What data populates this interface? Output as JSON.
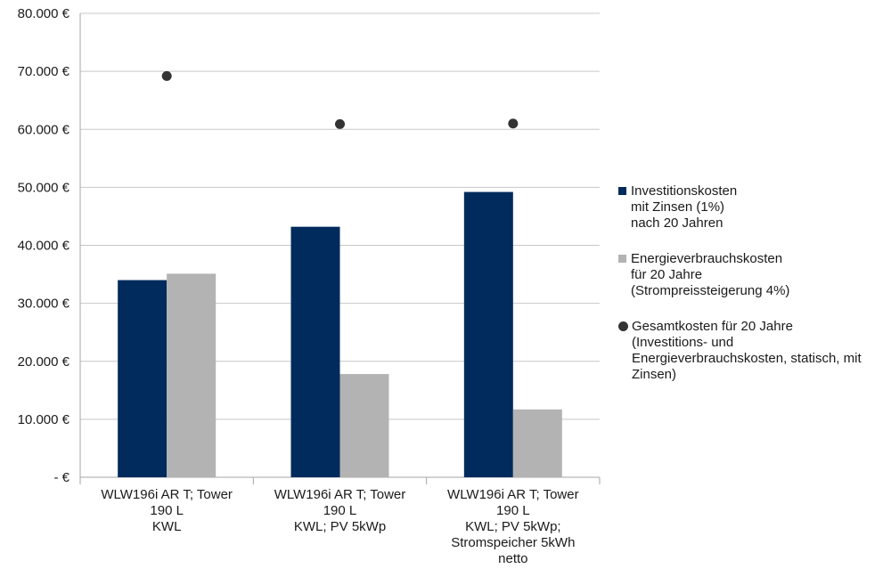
{
  "chart_data": {
    "type": "bar",
    "title": "",
    "xlabel": "",
    "ylabel": "",
    "ylim": [
      0,
      80000
    ],
    "y_ticks": [
      0,
      10000,
      20000,
      30000,
      40000,
      50000,
      60000,
      70000,
      80000
    ],
    "y_tick_labels": [
      "-   €",
      "10.000 €",
      "20.000 €",
      "30.000 €",
      "40.000 €",
      "50.000 €",
      "60.000 €",
      "70.000 €",
      "80.000 €"
    ],
    "grid": true,
    "legend_position": "right",
    "categories": [
      [
        "WLW196i AR T; Tower",
        "190 L",
        "KWL"
      ],
      [
        "WLW196i AR T; Tower",
        "190 L",
        "KWL; PV 5kWp"
      ],
      [
        "WLW196i AR T; Tower",
        "190 L",
        "KWL; PV 5kWp;",
        "Stromspeicher 5kWh",
        "netto"
      ]
    ],
    "series": [
      {
        "name": "Investitionskosten\nmit Zinsen (1%)\nnach 20 Jahren",
        "kind": "bar",
        "color": "#002b5c",
        "values": [
          34000,
          43200,
          49200
        ]
      },
      {
        "name": "Energieverbrauchskosten\nfür 20 Jahre\n(Strompreissteigerung 4%)",
        "kind": "bar",
        "color": "#b3b3b3",
        "values": [
          35100,
          17800,
          11700
        ]
      },
      {
        "name": "Gesamtkosten für 20 Jahre\n(Investitions- und\nEnergieverbrauchskosten, statisch, mit\nZinsen)",
        "kind": "point",
        "color": "#333333",
        "values": [
          69200,
          60900,
          61000
        ]
      }
    ]
  }
}
